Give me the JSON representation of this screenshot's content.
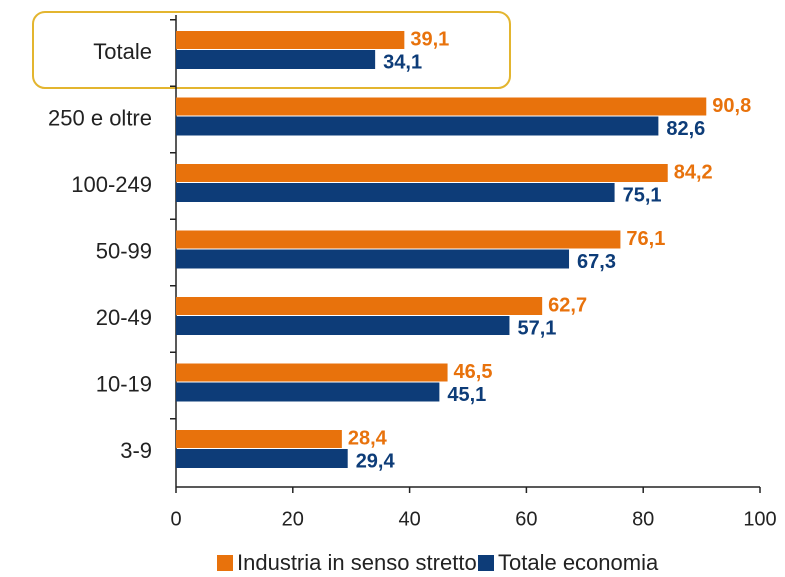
{
  "chart_data": {
    "type": "barh",
    "categories": [
      "Totale",
      "250 e oltre",
      "100-249",
      "50-99",
      "20-49",
      "10-19",
      "3-9"
    ],
    "series": [
      {
        "name": "Industria in senso stretto",
        "color": "#e8720c",
        "values": [
          39.1,
          90.8,
          84.2,
          76.1,
          62.7,
          46.5,
          28.4
        ],
        "value_labels": [
          "39,1",
          "90,8",
          "84,2",
          "76,1",
          "62,7",
          "46,5",
          "28,4"
        ]
      },
      {
        "name": "Totale economia",
        "color": "#0d3c78",
        "values": [
          34.1,
          82.6,
          75.1,
          67.3,
          57.1,
          45.1,
          29.4
        ],
        "value_labels": [
          "34,1",
          "82,6",
          "75,1",
          "67,3",
          "57,1",
          "45,1",
          "29,4"
        ]
      }
    ],
    "xlim": [
      0,
      100
    ],
    "xticks": [
      0,
      20,
      40,
      60,
      80,
      100
    ],
    "legend": "bottom"
  }
}
